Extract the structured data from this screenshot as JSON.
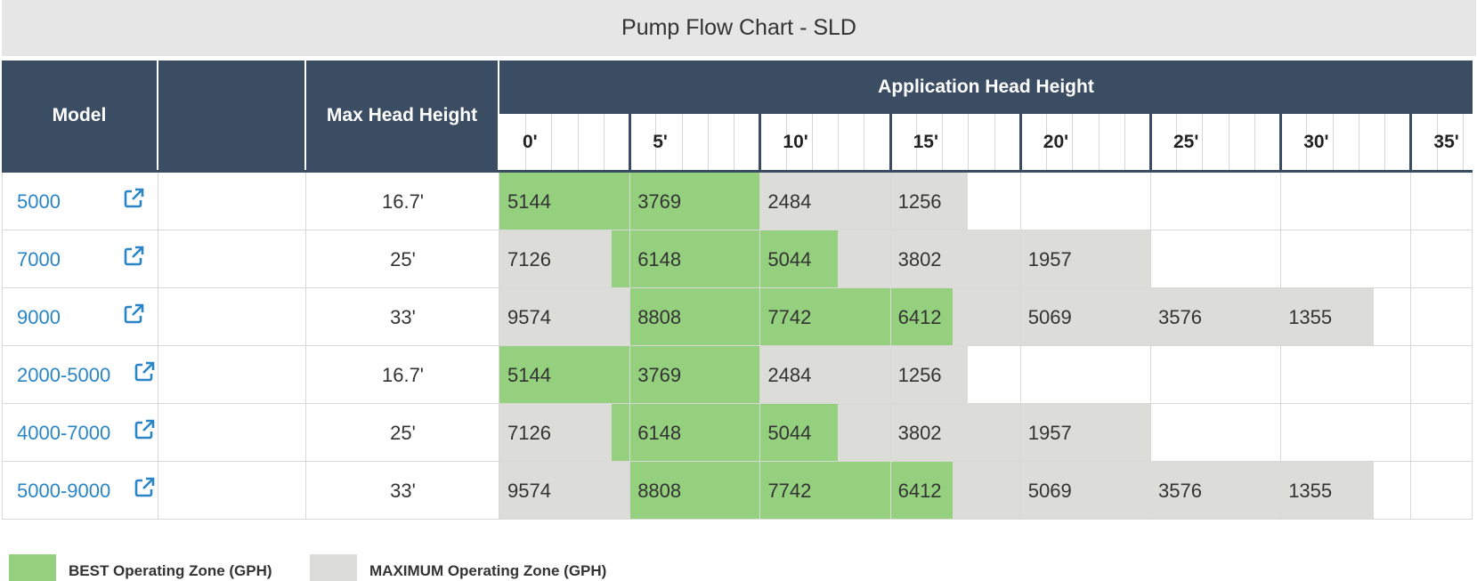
{
  "title": "Pump Flow Chart - SLD",
  "headers": {
    "model": "Model",
    "max_head": "Max Head Height",
    "application": "Application Head Height"
  },
  "head_labels": [
    "0'",
    "5'",
    "10'",
    "15'",
    "20'",
    "25'",
    "30'",
    "35'"
  ],
  "rows": [
    {
      "model": "5000",
      "max_head": "16.7'",
      "values": [
        "5144",
        "3769",
        "2484",
        "1256"
      ],
      "best_cols": [
        0,
        1
      ]
    },
    {
      "model": "7000",
      "max_head": "25'",
      "values": [
        "7126",
        "6148",
        "5044",
        "3802",
        "1957"
      ],
      "best_cols": [
        1,
        2
      ]
    },
    {
      "model": "9000",
      "max_head": "33'",
      "values": [
        "9574",
        "8808",
        "7742",
        "6412",
        "5069",
        "3576",
        "1355"
      ],
      "best_cols": [
        1,
        2,
        3
      ]
    },
    {
      "model": "2000-5000",
      "max_head": "16.7'",
      "values": [
        "5144",
        "3769",
        "2484",
        "1256"
      ],
      "best_cols": [
        0,
        1
      ]
    },
    {
      "model": "4000-7000",
      "max_head": "25'",
      "values": [
        "7126",
        "6148",
        "5044",
        "3802",
        "1957"
      ],
      "best_cols": [
        1,
        2
      ]
    },
    {
      "model": "5000-9000",
      "max_head": "33'",
      "values": [
        "9574",
        "8808",
        "7742",
        "6412",
        "5069",
        "3576",
        "1355"
      ],
      "best_cols": [
        1,
        2,
        3
      ]
    }
  ],
  "legend": {
    "best_label": "BEST Operating Zone (GPH)",
    "max_label": "MAXIMUM Operating Zone (GPH)"
  },
  "colors": {
    "header_bg": "#3b4d63",
    "best": "#95d07f",
    "maximum": "#dcdcd8",
    "link": "#2a85c7"
  },
  "icons": {
    "model_link": "external-link-icon"
  }
}
